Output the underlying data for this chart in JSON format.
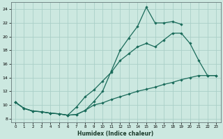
{
  "xlabel": "Humidex (Indice chaleur)",
  "background_color": "#cce8e0",
  "grid_color": "#aacfc8",
  "line_color": "#1a6b5a",
  "xlim": [
    -0.5,
    23.5
  ],
  "ylim": [
    7.5,
    25
  ],
  "xticks": [
    0,
    1,
    2,
    3,
    4,
    5,
    6,
    7,
    8,
    9,
    10,
    11,
    12,
    13,
    14,
    15,
    16,
    17,
    18,
    19,
    20,
    21,
    22,
    23
  ],
  "yticks": [
    8,
    10,
    12,
    14,
    16,
    18,
    20,
    22,
    24
  ],
  "line1_x": [
    0,
    1,
    2,
    3,
    4,
    5,
    6,
    7,
    8,
    9,
    10,
    11,
    12,
    13,
    14,
    15,
    16,
    17,
    18,
    19
  ],
  "line1_y": [
    10.4,
    9.5,
    9.1,
    9.0,
    8.8,
    8.7,
    8.5,
    8.6,
    9.2,
    10.5,
    12.0,
    15.0,
    18.0,
    19.8,
    21.5,
    24.3,
    22.0,
    22.0,
    22.2,
    21.8
  ],
  "line2_x": [
    0,
    1,
    2,
    3,
    4,
    5,
    6,
    7,
    8,
    9,
    10,
    11,
    12,
    13,
    14,
    15,
    16,
    17,
    18,
    19,
    20,
    21,
    22,
    23
  ],
  "line2_y": [
    10.4,
    9.5,
    9.1,
    9.0,
    8.8,
    8.7,
    8.5,
    9.7,
    11.2,
    12.2,
    13.5,
    14.8,
    16.5,
    17.5,
    18.5,
    19.0,
    18.5,
    19.5,
    20.5,
    20.5,
    19.0,
    16.5,
    14.3,
    14.3
  ],
  "line3_x": [
    0,
    1,
    2,
    3,
    4,
    5,
    6,
    7,
    8,
    9,
    10,
    11,
    12,
    13,
    14,
    15,
    16,
    17,
    18,
    19,
    20,
    21,
    22,
    23
  ],
  "line3_y": [
    10.4,
    9.5,
    9.1,
    9.0,
    8.8,
    8.7,
    8.5,
    8.6,
    9.2,
    10.0,
    10.3,
    10.8,
    11.2,
    11.6,
    12.0,
    12.3,
    12.6,
    13.0,
    13.3,
    13.7,
    14.0,
    14.3,
    14.3,
    14.3
  ]
}
